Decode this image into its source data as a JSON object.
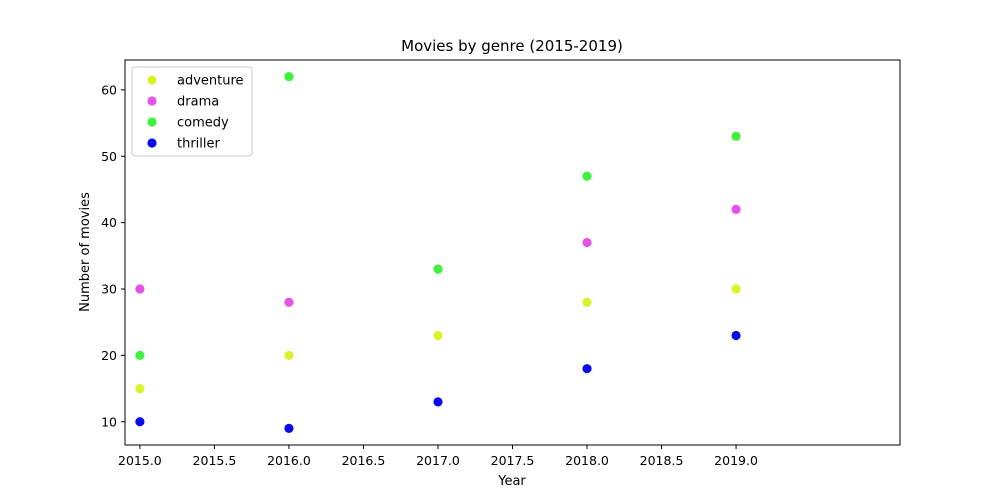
{
  "chart_data": {
    "type": "scatter",
    "title": "Movies by genre (2015-2019)",
    "xlabel": "Year",
    "ylabel": "Number of movies",
    "xlim": [
      2014.9,
      2020.1
    ],
    "ylim": [
      6.5,
      64.5
    ],
    "xticks": [
      2015.0,
      2015.5,
      2016.0,
      2016.5,
      2017.0,
      2017.5,
      2018.0,
      2018.5,
      2019.0
    ],
    "xtick_labels": [
      "2015.0",
      "2015.5",
      "2016.0",
      "2016.5",
      "2017.0",
      "2017.5",
      "2018.0",
      "2018.5",
      "2019.0"
    ],
    "yticks": [
      10,
      20,
      30,
      40,
      50,
      60
    ],
    "ytick_labels": [
      "10",
      "20",
      "30",
      "40",
      "50",
      "60"
    ],
    "grid": false,
    "legend_position": "top-left",
    "x": [
      2015,
      2016,
      2017,
      2018,
      2019
    ],
    "series": [
      {
        "name": "adventure",
        "color": "#d9f22a",
        "values": [
          15,
          20,
          23,
          28,
          30
        ]
      },
      {
        "name": "drama",
        "color": "#e652e6",
        "values": [
          30,
          28,
          33,
          37,
          42
        ]
      },
      {
        "name": "comedy",
        "color": "#3ef23e",
        "values": [
          20,
          62,
          33,
          47,
          53
        ]
      },
      {
        "name": "thriller",
        "color": "#0a0ae8",
        "values": [
          10,
          9,
          13,
          18,
          23
        ]
      }
    ]
  }
}
